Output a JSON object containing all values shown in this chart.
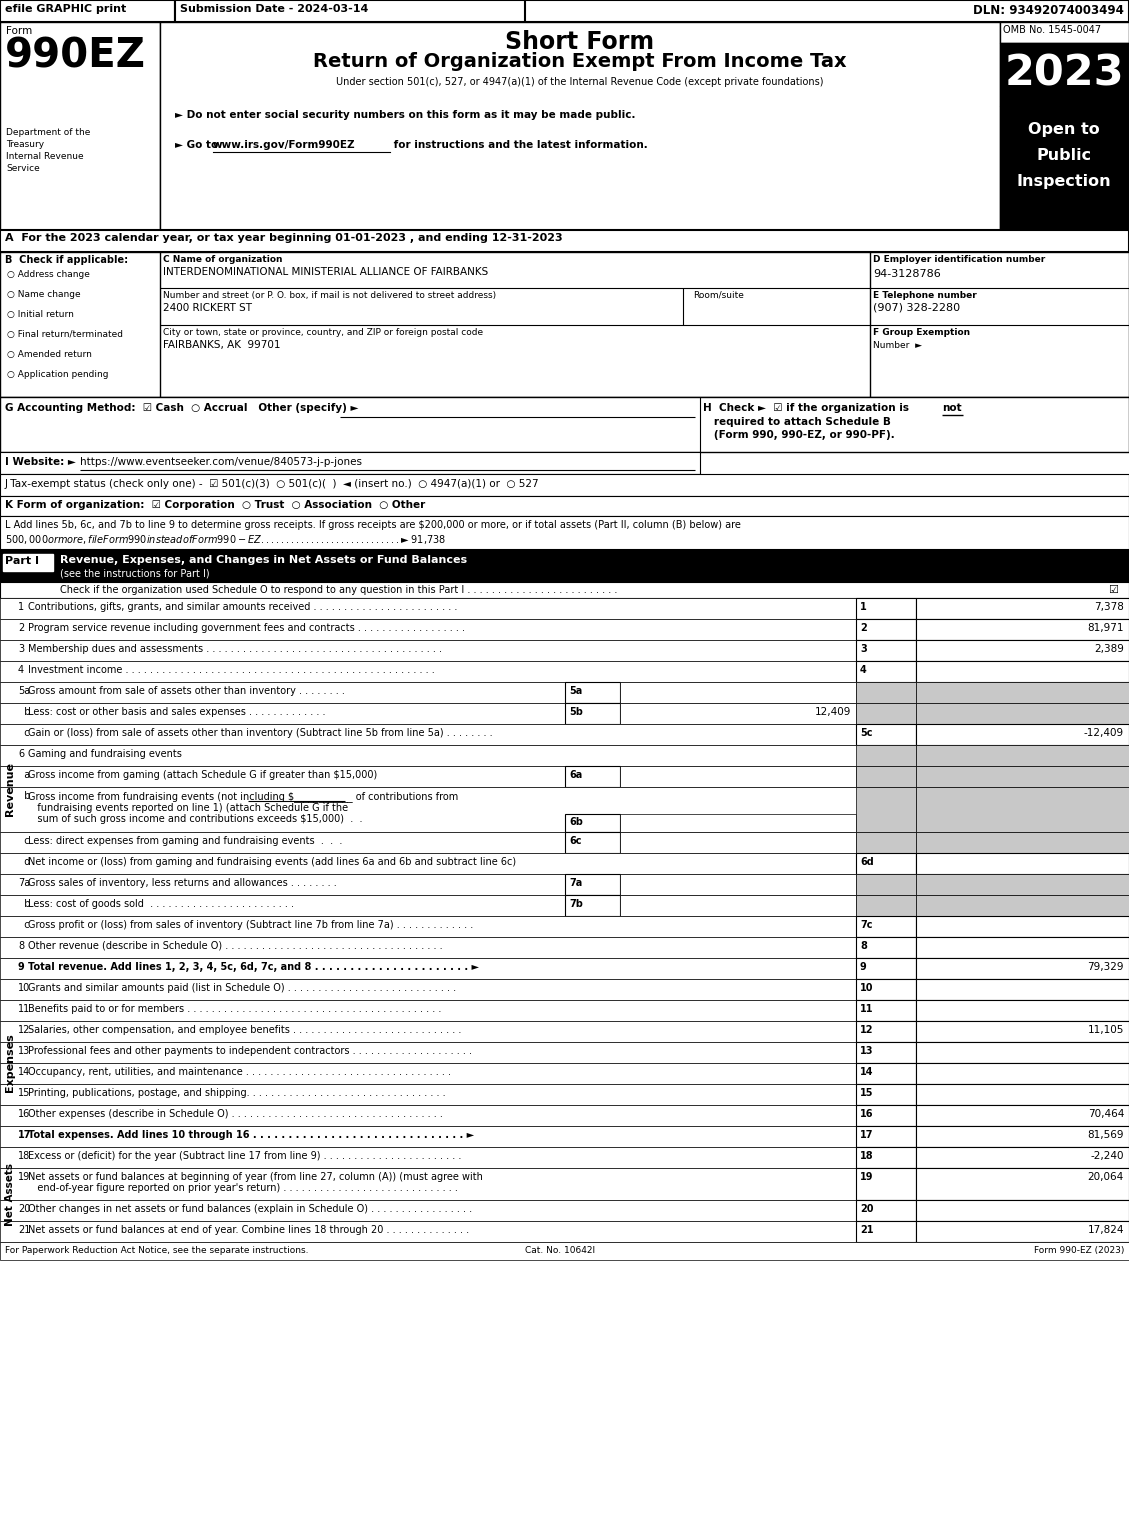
{
  "title_efile": "efile GRAPHIC print",
  "title_submission": "Submission Date - 2024-03-14",
  "title_dln": "DLN: 93492074003494",
  "form_title": "Short Form",
  "form_subtitle": "Return of Organization Exempt From Income Tax",
  "form_under": "Under section 501(c), 527, or 4947(a)(1) of the Internal Revenue Code (except private foundations)",
  "form_bullet1": "► Do not enter social security numbers on this form as it may be made public.",
  "form_bullet2_prefix": "► Go to ",
  "form_bullet2_url": "www.irs.gov/Form990EZ",
  "form_bullet2_suffix": " for instructions and the latest information.",
  "omb": "OMB No. 1545-0047",
  "year": "2023",
  "form_num": "990EZ",
  "dept1": "Department of the",
  "dept2": "Treasury",
  "dept3": "Internal Revenue",
  "dept4": "Service",
  "section_a": "A  For the 2023 calendar year, or tax year beginning 01-01-2023 , and ending 12-31-2023",
  "checkboxes_b": [
    "Address change",
    "Name change",
    "Initial return",
    "Final return/terminated",
    "Amended return",
    "Application pending"
  ],
  "org_name": "INTERDENOMINATIONAL MINISTERIAL ALLIANCE OF FAIRBANKS",
  "addr_label": "Number and street (or P. O. box, if mail is not delivered to street address)",
  "addr_roomsuite": "Room/suite",
  "addr_value": "2400 RICKERT ST",
  "city_label": "City or town, state or province, country, and ZIP or foreign postal code",
  "city_value": "FAIRBANKS, AK  99701",
  "ein": "94-3128786",
  "phone": "(907) 328-2280",
  "section_i_url": "https://www.eventseeker.com/venue/840573-j-p-jones",
  "footer_left": "For Paperwork Reduction Act Notice, see the separate instructions.",
  "footer_cat": "Cat. No. 10642I",
  "footer_right": "Form 990-EZ (2023)"
}
